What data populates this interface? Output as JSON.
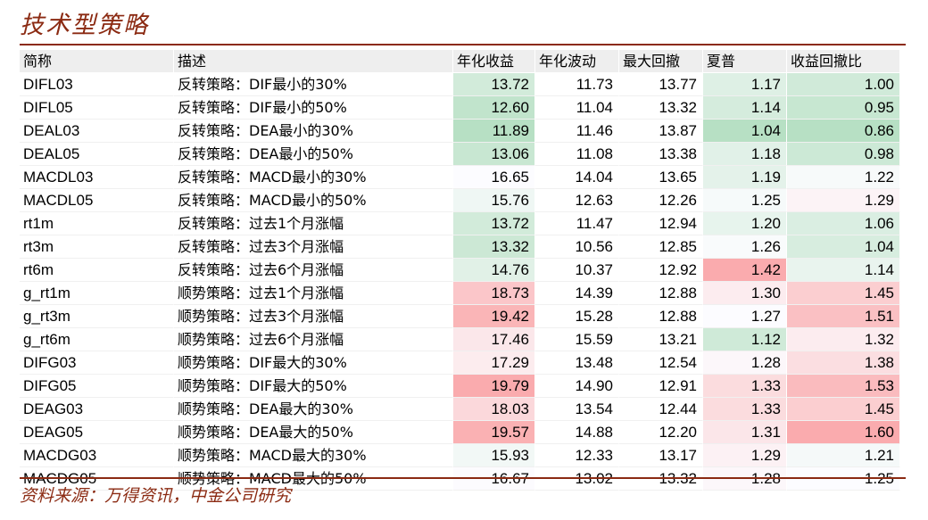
{
  "title": "技术型策略",
  "source": "资料来源：万得资讯，中金公司研究",
  "table": {
    "headers": [
      "简称",
      "描述",
      "年化收益",
      "年化波动",
      "最大回撤",
      "夏普",
      "收益回撤比"
    ],
    "rows": [
      {
        "name": "DIFL03",
        "desc": "反转策略：DIF最小的30%",
        "ret": "13.72",
        "vol": "11.73",
        "mdd": "13.77",
        "sharpe": "1.17",
        "ratio": "1.00"
      },
      {
        "name": "DIFL05",
        "desc": "反转策略：DIF最小的50%",
        "ret": "12.60",
        "vol": "11.04",
        "mdd": "13.32",
        "sharpe": "1.14",
        "ratio": "0.95"
      },
      {
        "name": "DEAL03",
        "desc": "反转策略：DEA最小的30%",
        "ret": "11.89",
        "vol": "11.46",
        "mdd": "13.87",
        "sharpe": "1.04",
        "ratio": "0.86"
      },
      {
        "name": "DEAL05",
        "desc": "反转策略：DEA最小的50%",
        "ret": "13.06",
        "vol": "11.08",
        "mdd": "13.38",
        "sharpe": "1.18",
        "ratio": "0.98"
      },
      {
        "name": "MACDL03",
        "desc": "反转策略：MACD最小的30%",
        "ret": "16.65",
        "vol": "14.04",
        "mdd": "13.65",
        "sharpe": "1.19",
        "ratio": "1.22"
      },
      {
        "name": "MACDL05",
        "desc": "反转策略：MACD最小的50%",
        "ret": "15.76",
        "vol": "12.63",
        "mdd": "12.26",
        "sharpe": "1.25",
        "ratio": "1.29"
      },
      {
        "name": "rt1m",
        "desc": "反转策略：过去1个月涨幅",
        "ret": "13.72",
        "vol": "11.47",
        "mdd": "12.94",
        "sharpe": "1.20",
        "ratio": "1.06"
      },
      {
        "name": "rt3m",
        "desc": "反转策略：过去3个月涨幅",
        "ret": "13.32",
        "vol": "10.56",
        "mdd": "12.85",
        "sharpe": "1.26",
        "ratio": "1.04"
      },
      {
        "name": "rt6m",
        "desc": "反转策略：过去6个月涨幅",
        "ret": "14.76",
        "vol": "10.37",
        "mdd": "12.92",
        "sharpe": "1.42",
        "ratio": "1.14"
      },
      {
        "name": "g_rt1m",
        "desc": "顺势策略：过去1个月涨幅",
        "ret": "18.73",
        "vol": "14.39",
        "mdd": "12.88",
        "sharpe": "1.30",
        "ratio": "1.45"
      },
      {
        "name": "g_rt3m",
        "desc": "顺势策略：过去3个月涨幅",
        "ret": "19.42",
        "vol": "15.28",
        "mdd": "12.88",
        "sharpe": "1.27",
        "ratio": "1.51"
      },
      {
        "name": "g_rt6m",
        "desc": "顺势策略：过去6个月涨幅",
        "ret": "17.46",
        "vol": "15.59",
        "mdd": "13.21",
        "sharpe": "1.12",
        "ratio": "1.32"
      },
      {
        "name": "DIFG03",
        "desc": "顺势策略：DIF最大的30%",
        "ret": "17.29",
        "vol": "13.48",
        "mdd": "12.54",
        "sharpe": "1.28",
        "ratio": "1.38"
      },
      {
        "name": "DIFG05",
        "desc": "顺势策略：DIF最大的50%",
        "ret": "19.79",
        "vol": "14.90",
        "mdd": "12.91",
        "sharpe": "1.33",
        "ratio": "1.53"
      },
      {
        "name": "DEAG03",
        "desc": "顺势策略：DEA最大的30%",
        "ret": "18.03",
        "vol": "13.54",
        "mdd": "12.44",
        "sharpe": "1.33",
        "ratio": "1.45"
      },
      {
        "name": "DEAG05",
        "desc": "顺势策略：DEA最大的50%",
        "ret": "19.57",
        "vol": "14.88",
        "mdd": "12.20",
        "sharpe": "1.31",
        "ratio": "1.60"
      },
      {
        "name": "MACDG03",
        "desc": "顺势策略：MACD最大的30%",
        "ret": "15.93",
        "vol": "12.33",
        "mdd": "13.17",
        "sharpe": "1.29",
        "ratio": "1.21"
      },
      {
        "name": "MACDG05",
        "desc": "顺势策略：MACD最大的50%",
        "ret": "16.67",
        "vol": "13.02",
        "mdd": "13.32",
        "sharpe": "1.28",
        "ratio": "1.25"
      }
    ]
  },
  "heatmap_colors": {
    "low": "#63be7b",
    "mid": "#fcfcff",
    "high": "#f8696b"
  }
}
